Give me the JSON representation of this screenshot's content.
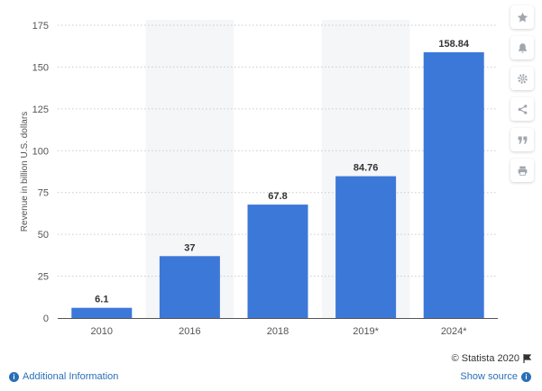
{
  "chart_data": {
    "type": "bar",
    "categories": [
      "2010",
      "2016",
      "2018",
      "2019*",
      "2024*"
    ],
    "values": [
      6.1,
      37,
      67.8,
      84.76,
      158.84
    ],
    "value_labels": [
      "6.1",
      "37",
      "67.8",
      "84.76",
      "158.84"
    ],
    "ylabel": "Revenue in billion U.S. dollars",
    "ylim": [
      0,
      175
    ],
    "yticks": [
      "0",
      "25",
      "50",
      "75",
      "100",
      "125",
      "150",
      "175"
    ],
    "bar_color": "#3c78d8",
    "band_color": "#f5f6f8",
    "grid": true
  },
  "toolbar": {
    "icons": [
      "star-icon",
      "bell-icon",
      "gear-icon",
      "share-icon",
      "quote-icon",
      "print-icon"
    ]
  },
  "footer": {
    "credit": "© Statista 2020",
    "additional_info": "Additional Information",
    "show_source": "Show source"
  }
}
